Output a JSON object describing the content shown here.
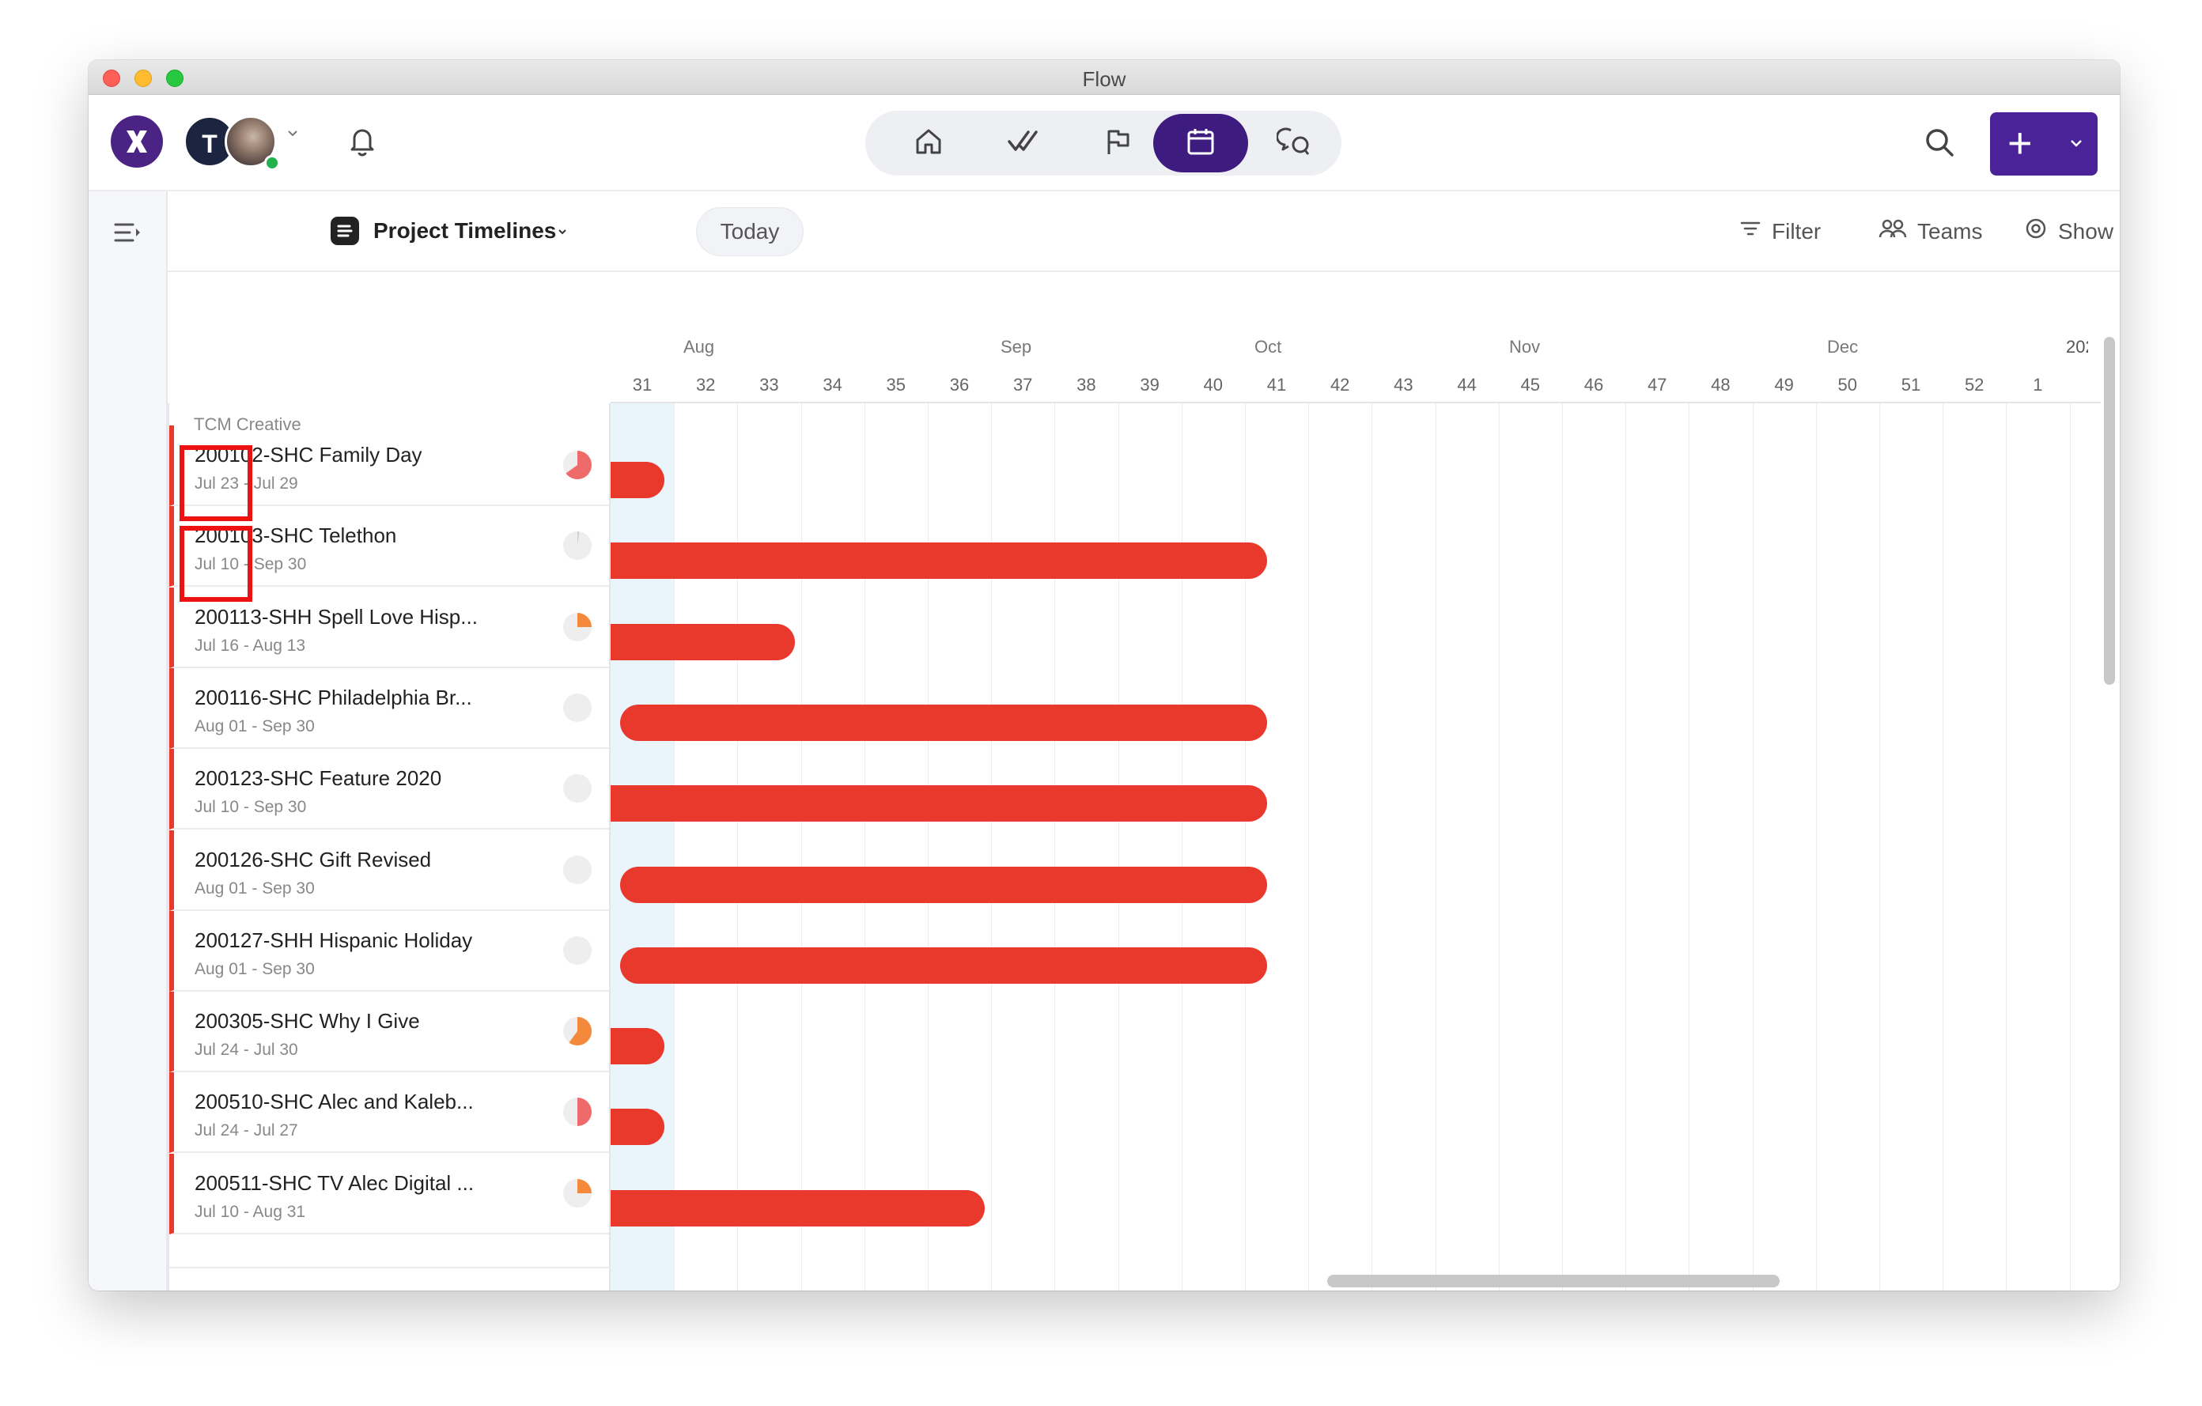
{
  "window": {
    "title": "Flow"
  },
  "header": {
    "avatar_initial": "T",
    "nav": [
      "home-icon",
      "tasks-icon",
      "flag-icon",
      "calendar-icon",
      "chat-icon"
    ],
    "active_nav": "calendar-icon",
    "accent_color": "#4a2399"
  },
  "toolbar": {
    "project_title": "Project Timelines",
    "today_label": "Today",
    "filter_label": "Filter",
    "teams_label": "Teams",
    "show_label": "Show",
    "more_label": "···"
  },
  "timeline": {
    "months": [
      "Aug",
      "Sep",
      "Oct",
      "Nov",
      "Dec"
    ],
    "year_label": "202",
    "weeks": [
      "31",
      "32",
      "33",
      "34",
      "35",
      "36",
      "37",
      "38",
      "39",
      "40",
      "41",
      "42",
      "43",
      "44",
      "45",
      "46",
      "47",
      "48",
      "49",
      "50",
      "51",
      "52",
      "1"
    ],
    "current_week": "31",
    "bar_color": "#e9382c"
  },
  "group": {
    "label": "TCM Creative"
  },
  "projects": [
    {
      "title": "200102-SHC Family Day",
      "dates": "Jul 23 - Jul 29",
      "progress": 0.65,
      "progress_color": "#ef6b6b",
      "start_week": 30.0,
      "end_week": 30.85
    },
    {
      "title": "200103-SHC Telethon",
      "dates": "Jul 10 - Sep 30",
      "progress": 0.02,
      "progress_color": "#cccccc",
      "start_week": 30.0,
      "end_week": 40.35
    },
    {
      "title": "200113-SHH Spell Love Hisp...",
      "dates": "Jul 16 - Aug 13",
      "progress": 0.25,
      "progress_color": "#f5893b",
      "start_week": 30.0,
      "end_week": 32.9
    },
    {
      "title": "200116-SHC Philadelphia Br...",
      "dates": "Aug 01 - Sep 30",
      "progress": 0.0,
      "progress_color": "#cccccc",
      "start_week": 30.15,
      "end_week": 40.35
    },
    {
      "title": "200123-SHC Feature 2020",
      "dates": "Jul 10 - Sep 30",
      "progress": 0.0,
      "progress_color": "#cccccc",
      "start_week": 30.0,
      "end_week": 40.35
    },
    {
      "title": "200126-SHC Gift Revised",
      "dates": "Aug 01 - Sep 30",
      "progress": 0.0,
      "progress_color": "#cccccc",
      "start_week": 30.15,
      "end_week": 40.35
    },
    {
      "title": "200127-SHH Hispanic Holiday",
      "dates": "Aug 01 - Sep 30",
      "progress": 0.0,
      "progress_color": "#cccccc",
      "start_week": 30.15,
      "end_week": 40.35
    },
    {
      "title": "200305-SHC Why I Give",
      "dates": "Jul 24 - Jul 30",
      "progress": 0.6,
      "progress_color": "#f5893b",
      "start_week": 30.0,
      "end_week": 30.85
    },
    {
      "title": "200510-SHC Alec and Kaleb...",
      "dates": "Jul 24 - Jul 27",
      "progress": 0.5,
      "progress_color": "#ef6b6b",
      "start_week": 30.0,
      "end_week": 30.85
    },
    {
      "title": "200511-SHC TV Alec Digital ...",
      "dates": "Jul 10 - Aug 31",
      "progress": 0.25,
      "progress_color": "#f5893b",
      "start_week": 30.0,
      "end_week": 35.9
    }
  ]
}
